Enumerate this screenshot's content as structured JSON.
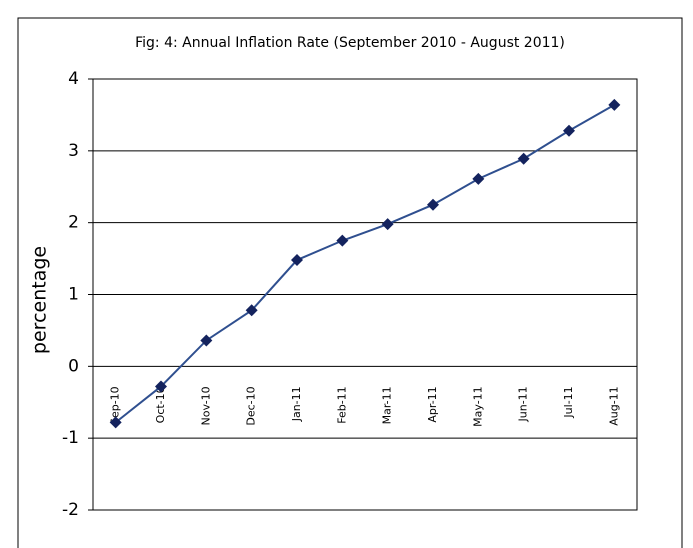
{
  "chart_data": {
    "type": "line",
    "title": "Fig: 4: Annual Inflation Rate (September 2010 - August 2011)",
    "y_label": "percentage",
    "categories": [
      "Sep-10",
      "Oct-10",
      "Nov-10",
      "Dec-10",
      "Jan-11",
      "Feb-11",
      "Mar-11",
      "Apr-11",
      "May-11",
      "Jun-11",
      "Jul-11",
      "Aug-11"
    ],
    "values": [
      -0.78,
      -0.28,
      0.36,
      0.78,
      1.48,
      1.75,
      1.98,
      2.25,
      2.61,
      2.89,
      3.28,
      3.64
    ],
    "color": "#2f4f8f",
    "marker_color": "#14235e",
    "ylim": [
      -2,
      4
    ],
    "yticks": [
      -2,
      -1,
      0,
      1,
      2,
      3,
      4
    ],
    "grid": true
  }
}
